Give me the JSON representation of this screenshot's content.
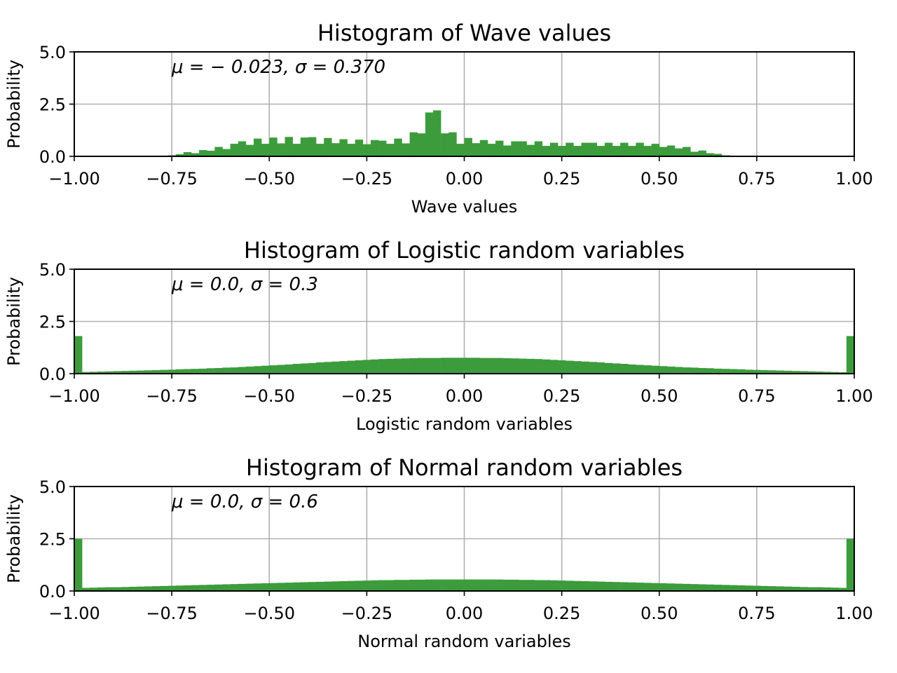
{
  "colors": {
    "bar": "#3c9c3c",
    "grid": "#b0b0b0",
    "axes": "#000000",
    "background": "#ffffff"
  },
  "chart_data": [
    {
      "type": "bar",
      "title": "Histogram of Wave values",
      "xlabel": "Wave values",
      "ylabel": "Probability",
      "annotation": "μ = − 0.023,  σ = 0.370",
      "xlim": [
        -1.0,
        1.0
      ],
      "ylim": [
        0,
        5.0
      ],
      "xticks": [
        "−1.00",
        "−0.75",
        "−0.50",
        "−0.25",
        "0.00",
        "0.25",
        "0.50",
        "0.75",
        "1.00"
      ],
      "yticks": [
        "0.0",
        "2.5",
        "5.0"
      ],
      "grid": true,
      "bin_width": 0.02,
      "bin_start": -0.76,
      "values": [
        0.05,
        0.1,
        0.2,
        0.15,
        0.3,
        0.27,
        0.45,
        0.35,
        0.6,
        0.72,
        0.55,
        0.85,
        0.6,
        0.9,
        0.62,
        0.93,
        0.6,
        0.9,
        0.92,
        0.6,
        0.88,
        0.63,
        0.82,
        0.6,
        0.8,
        0.58,
        0.78,
        0.75,
        0.6,
        0.85,
        0.62,
        1.15,
        1.1,
        2.1,
        2.2,
        1.1,
        1.15,
        0.6,
        0.88,
        0.63,
        0.78,
        0.6,
        0.75,
        0.52,
        0.72,
        0.72,
        0.55,
        0.72,
        0.5,
        0.65,
        0.5,
        0.65,
        0.5,
        0.65,
        0.65,
        0.5,
        0.65,
        0.5,
        0.65,
        0.5,
        0.65,
        0.5,
        0.6,
        0.45,
        0.52,
        0.38,
        0.45,
        0.22,
        0.28,
        0.15,
        0.12,
        0.05
      ]
    },
    {
      "type": "bar",
      "title": "Histogram of Logistic random variables",
      "xlabel": "Logistic random variables",
      "ylabel": "Probability",
      "annotation": "μ = 0.0,  σ = 0.3",
      "xlim": [
        -1.0,
        1.0
      ],
      "ylim": [
        0,
        5.0
      ],
      "xticks": [
        "−1.00",
        "−0.75",
        "−0.50",
        "−0.25",
        "0.00",
        "0.25",
        "0.50",
        "0.75",
        "1.00"
      ],
      "yticks": [
        "0.0",
        "2.5",
        "5.0"
      ],
      "grid": true,
      "bin_width": 0.02,
      "bin_start": -1.0,
      "values": [
        1.8,
        0.08,
        0.09,
        0.1,
        0.11,
        0.12,
        0.13,
        0.14,
        0.15,
        0.16,
        0.17,
        0.18,
        0.19,
        0.21,
        0.22,
        0.23,
        0.24,
        0.26,
        0.27,
        0.29,
        0.3,
        0.32,
        0.34,
        0.36,
        0.38,
        0.4,
        0.42,
        0.44,
        0.47,
        0.49,
        0.51,
        0.54,
        0.56,
        0.58,
        0.6,
        0.62,
        0.64,
        0.66,
        0.68,
        0.7,
        0.71,
        0.72,
        0.73,
        0.74,
        0.75,
        0.75,
        0.75,
        0.76,
        0.76,
        0.76,
        0.76,
        0.76,
        0.75,
        0.75,
        0.75,
        0.74,
        0.73,
        0.72,
        0.71,
        0.7,
        0.68,
        0.66,
        0.64,
        0.62,
        0.6,
        0.58,
        0.56,
        0.54,
        0.51,
        0.49,
        0.47,
        0.44,
        0.42,
        0.4,
        0.38,
        0.36,
        0.34,
        0.32,
        0.3,
        0.29,
        0.27,
        0.26,
        0.24,
        0.23,
        0.22,
        0.21,
        0.19,
        0.18,
        0.17,
        0.16,
        0.15,
        0.14,
        0.13,
        0.12,
        0.11,
        0.1,
        0.09,
        0.08,
        0.07,
        1.8
      ]
    },
    {
      "type": "bar",
      "title": "Histogram of Normal random variables",
      "xlabel": "Normal random variables",
      "ylabel": "Probability",
      "annotation": "μ = 0.0,  σ = 0.6",
      "xlim": [
        -1.0,
        1.0
      ],
      "ylim": [
        0,
        5.0
      ],
      "xticks": [
        "−1.00",
        "−0.75",
        "−0.50",
        "−0.25",
        "0.00",
        "0.25",
        "0.50",
        "0.75",
        "1.00"
      ],
      "yticks": [
        "0.0",
        "2.5",
        "5.0"
      ],
      "grid": true,
      "bin_width": 0.02,
      "bin_start": -1.0,
      "values": [
        2.5,
        0.15,
        0.16,
        0.17,
        0.18,
        0.18,
        0.19,
        0.2,
        0.21,
        0.22,
        0.23,
        0.24,
        0.25,
        0.26,
        0.27,
        0.28,
        0.29,
        0.3,
        0.31,
        0.32,
        0.33,
        0.34,
        0.35,
        0.36,
        0.37,
        0.38,
        0.39,
        0.4,
        0.41,
        0.42,
        0.43,
        0.44,
        0.45,
        0.46,
        0.47,
        0.48,
        0.49,
        0.5,
        0.51,
        0.52,
        0.52,
        0.53,
        0.53,
        0.54,
        0.54,
        0.55,
        0.55,
        0.55,
        0.55,
        0.55,
        0.55,
        0.55,
        0.55,
        0.55,
        0.55,
        0.54,
        0.54,
        0.53,
        0.53,
        0.52,
        0.52,
        0.51,
        0.5,
        0.49,
        0.48,
        0.47,
        0.46,
        0.45,
        0.44,
        0.43,
        0.42,
        0.41,
        0.4,
        0.39,
        0.38,
        0.37,
        0.36,
        0.35,
        0.34,
        0.33,
        0.32,
        0.31,
        0.3,
        0.29,
        0.28,
        0.27,
        0.26,
        0.25,
        0.24,
        0.23,
        0.22,
        0.21,
        0.2,
        0.19,
        0.18,
        0.18,
        0.17,
        0.16,
        0.15,
        2.5
      ]
    }
  ]
}
